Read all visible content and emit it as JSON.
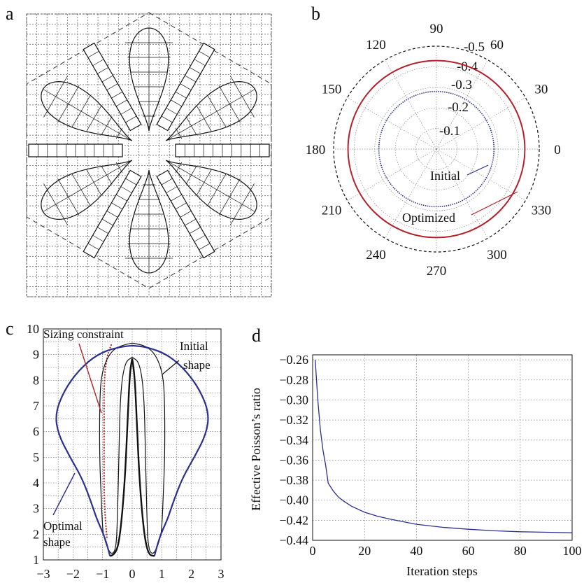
{
  "panels": {
    "a": {
      "label": "a"
    },
    "b": {
      "label": "b"
    },
    "c": {
      "label": "c"
    },
    "d": {
      "label": "d"
    }
  },
  "colors": {
    "initial": "#2b2f8f",
    "optimized": "#b3202a",
    "ink": "#111111",
    "grid": "#555555"
  },
  "chart_data": [
    {
      "panel": "a",
      "type": "other",
      "description_shown": "eight-petal lattice drawing on dashed grid"
    },
    {
      "panel": "b",
      "type": "polar",
      "angle_ticks": [
        "0",
        "30",
        "60",
        "90",
        "120",
        "150",
        "180",
        "210",
        "240",
        "270",
        "300",
        "330"
      ],
      "radial_ticks": [
        "-0.1",
        "-0.2",
        "-0.3",
        "-0.4",
        "-0.5"
      ],
      "series": [
        {
          "name": "Initial",
          "value": -0.28
        },
        {
          "name": "Optimized",
          "value": -0.43
        }
      ]
    },
    {
      "panel": "c",
      "type": "line",
      "x_ticks": [
        "−3",
        "−2",
        "−1",
        "0",
        "1",
        "2",
        "3"
      ],
      "y_ticks": [
        "1",
        "2",
        "3",
        "4",
        "5",
        "6",
        "7",
        "8",
        "9",
        "10"
      ],
      "xlim": [
        -3,
        3
      ],
      "ylim": [
        1,
        10
      ],
      "annotations": [
        "Sizing constraint",
        "Initial",
        "shape",
        "Optimal",
        "shape"
      ],
      "optimal": [
        [
          0,
          9.35
        ],
        [
          -0.5,
          9.3
        ],
        [
          -1.2,
          9.0
        ],
        [
          -1.8,
          8.4
        ],
        [
          -2.3,
          7.6
        ],
        [
          -2.6,
          6.7
        ],
        [
          -2.5,
          5.9
        ],
        [
          -2.1,
          5.0
        ],
        [
          -1.7,
          4.2
        ],
        [
          -1.4,
          3.3
        ],
        [
          -1.2,
          2.6
        ],
        [
          -1.0,
          2.1
        ],
        [
          -0.85,
          1.6
        ],
        [
          -0.75,
          1.15
        ],
        [
          -0.55,
          1.2
        ],
        [
          -0.4,
          2.0
        ],
        [
          -0.25,
          4.0
        ],
        [
          -0.15,
          6.5
        ],
        [
          -0.08,
          8.3
        ],
        [
          0,
          8.85
        ]
      ],
      "initial": [
        [
          0,
          9.45
        ],
        [
          -0.45,
          9.35
        ],
        [
          -0.8,
          9.0
        ],
        [
          -1.05,
          8.2
        ],
        [
          -1.1,
          7.0
        ],
        [
          -1.1,
          5.0
        ],
        [
          -1.05,
          3.5
        ],
        [
          -1.0,
          2.2
        ],
        [
          -0.95,
          1.9
        ],
        [
          -0.85,
          1.5
        ],
        [
          -0.7,
          1.2
        ],
        [
          -0.55,
          1.4
        ],
        [
          -0.5,
          2.5
        ],
        [
          -0.45,
          5.0
        ],
        [
          -0.4,
          7.5
        ],
        [
          -0.25,
          8.7
        ],
        [
          0,
          8.9
        ]
      ],
      "sizing_constraint": [
        [
          -0.7,
          9.4
        ],
        [
          -0.85,
          9.0
        ],
        [
          -0.95,
          8.0
        ],
        [
          -0.95,
          6.5
        ],
        [
          -0.95,
          5.0
        ],
        [
          -0.95,
          3.5
        ],
        [
          -0.9,
          2.5
        ],
        [
          -0.85,
          1.8
        ]
      ]
    },
    {
      "panel": "d",
      "type": "line",
      "xlabel": "Iteration steps",
      "ylabel": "Effective Poisson’s ratio",
      "x_ticks": [
        "0",
        "20",
        "40",
        "60",
        "80",
        "100"
      ],
      "y_ticks": [
        "−0.26",
        "−0.28",
        "−0.30",
        "−0.32",
        "−0.34",
        "−0.36",
        "−0.38",
        "−0.40",
        "−0.42",
        "−0.44"
      ],
      "xlim": [
        0,
        100
      ],
      "ylim": [
        -0.44,
        -0.255
      ],
      "x": [
        1,
        2,
        3,
        4,
        5,
        6,
        8,
        10,
        12,
        15,
        20,
        25,
        30,
        40,
        50,
        60,
        70,
        80,
        90,
        100
      ],
      "values": [
        -0.26,
        -0.3,
        -0.33,
        -0.35,
        -0.365,
        -0.383,
        -0.391,
        -0.397,
        -0.401,
        -0.406,
        -0.412,
        -0.416,
        -0.419,
        -0.424,
        -0.427,
        -0.429,
        -0.4305,
        -0.4315,
        -0.432,
        -0.4325
      ]
    }
  ]
}
